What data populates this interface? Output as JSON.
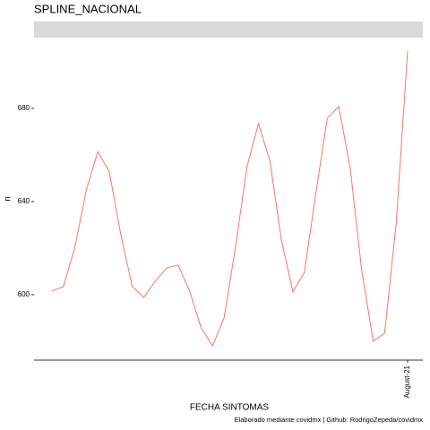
{
  "chart_data": {
    "type": "line",
    "title": "SPLINE_NACIONAL",
    "x_label": "FECHA SINTOMAS",
    "y_label": "n",
    "caption": "Elaborado mediante covidmx | Github: RodrigoZepeda/covidmx",
    "categories": [
      null,
      null,
      null,
      null,
      null,
      null,
      null,
      null,
      null,
      null,
      null,
      null,
      null,
      null,
      null,
      null,
      null,
      null,
      null,
      null,
      null,
      null,
      null,
      null,
      null,
      null,
      null,
      null,
      null,
      null,
      null,
      "August-21"
    ],
    "series": [
      {
        "name": "n",
        "color": "#F8766D",
        "values": [
          601.5,
          603.5,
          620.4,
          645,
          661.5,
          652.7,
          625.8,
          603.5,
          598.8,
          605.8,
          611.5,
          612.7,
          601.5,
          585.8,
          578,
          590,
          620.4,
          655,
          673.5,
          657.3,
          623.5,
          601.2,
          609.6,
          643.5,
          675.8,
          680.8,
          654.2,
          610.4,
          580,
          583.5,
          630.4,
          704.6
        ]
      }
    ],
    "ylim": [
      571.9,
      710.4
    ],
    "yticks": [
      600,
      640,
      680
    ],
    "grid": false
  }
}
